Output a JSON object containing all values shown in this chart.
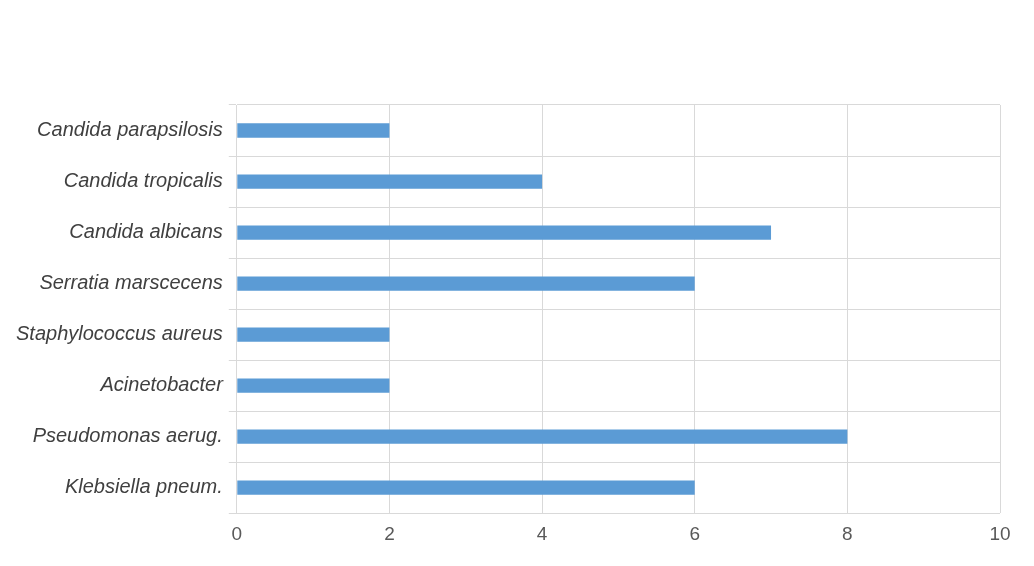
{
  "chart_data": {
    "type": "bar",
    "orientation": "horizontal",
    "categories": [
      "Candida parapsilosis",
      "Candida tropicalis",
      "Candida albicans",
      "Serratia marscecens",
      "Staphylococcus aureus",
      "Acinetobacter",
      "Pseudomonas aerug.",
      "Klebsiella pneum."
    ],
    "values": [
      2,
      4,
      7,
      6,
      2,
      2,
      8,
      6
    ],
    "color": "#5b9bd5",
    "xlim": [
      0,
      10
    ],
    "xticks": [
      0,
      2,
      4,
      6,
      8,
      10
    ],
    "grid": true,
    "legend": false
  }
}
